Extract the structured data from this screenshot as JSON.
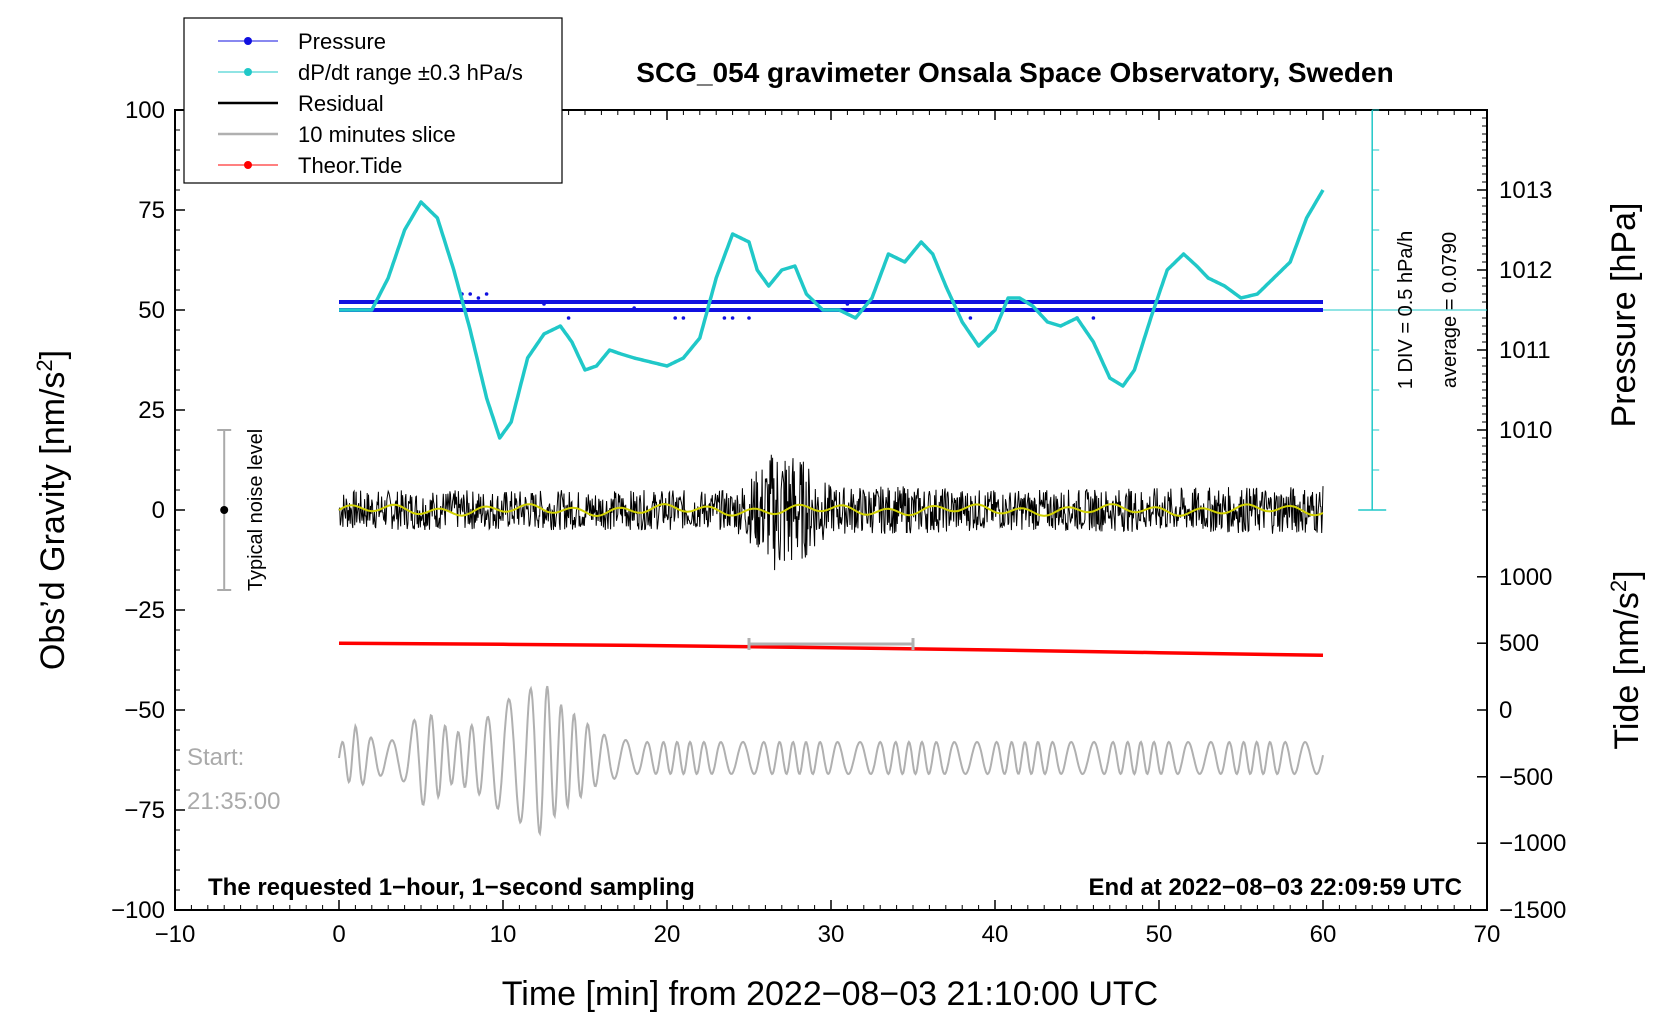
{
  "chart_data": {
    "type": "line",
    "title": "SCG_054 gravimeter Onsala Space Observatory, Sweden",
    "xlabel": "Time [min] from 2022−08−03 21:10:00 UTC",
    "ylabel_left": "Obs’d Gravity [nm/s²]",
    "ylabel_left_main": "Obs’d Gravity [nm/s",
    "ylabel_left_sup": "2",
    "ylabel_left_end": "]",
    "ylabel_right_top": "Pressure [hPa]",
    "ylabel_right_bottom_main": "Tide [nm/s",
    "ylabel_right_bottom_sup": "2",
    "ylabel_right_bottom_end": "]",
    "xlim": [
      -10,
      70
    ],
    "ylim": [
      -100,
      100
    ],
    "x_ticks": [
      -10,
      0,
      10,
      20,
      30,
      40,
      50,
      60,
      70
    ],
    "x_tick_labels": [
      "−10",
      "0",
      "10",
      "20",
      "30",
      "40",
      "50",
      "60",
      "70"
    ],
    "y_ticks": [
      100,
      75,
      50,
      25,
      0,
      -25,
      -50,
      -75,
      -100
    ],
    "y_tick_labels": [
      "100",
      "75",
      "50",
      "25",
      "0",
      "−25",
      "−50",
      "−75",
      "−100"
    ],
    "pressure_axis": {
      "ticks": [
        1013,
        1012,
        1011,
        1010
      ],
      "tick_labels": [
        "1013",
        "1012",
        "1011",
        "1010"
      ],
      "y_at_ticks": [
        80,
        60,
        40,
        20
      ]
    },
    "tide_axis": {
      "ticks": [
        1000,
        500,
        0,
        -500,
        -1000,
        -1500
      ],
      "tick_labels": [
        "1000",
        "500",
        "0",
        "−500",
        "−1000",
        "−1500"
      ],
      "y_at_ticks": [
        -16.7,
        -33.3,
        -50,
        -66.7,
        -83.3,
        -100
      ]
    },
    "legend": [
      {
        "label": "Pressure",
        "color": "#1010e0"
      },
      {
        "label": "dP/dt range ±0.3 hPa/s",
        "color": "#20c8c8"
      },
      {
        "label": "Residual",
        "color": "#000000"
      },
      {
        "label": "10 minutes slice",
        "color": "#b0b0b0"
      },
      {
        "label": "Theor.Tide",
        "color": "#ff0000"
      }
    ],
    "series": {
      "dpdt_curve": {
        "name": "dP/dt range ±0.3 hPa/s",
        "color": "#20c8c8",
        "x": [
          0,
          2,
          3,
          4,
          5,
          6,
          7,
          8,
          9,
          9.8,
          10.5,
          11.5,
          12.5,
          13.5,
          14.2,
          15,
          15.7,
          16.5,
          17.2,
          18,
          19,
          20,
          21,
          22,
          23,
          24,
          25,
          25.5,
          26.2,
          27,
          27.8,
          28.5,
          29.5,
          30.5,
          31.5,
          32.5,
          33.5,
          34.5,
          35.5,
          36.2,
          37,
          38,
          39,
          40,
          40.8,
          41.5,
          42.3,
          43.2,
          44,
          45,
          46,
          47,
          47.8,
          48.5,
          49.5,
          50.5,
          51.5,
          52.3,
          53,
          54,
          55,
          56,
          57,
          58,
          59,
          60
        ],
        "y": [
          50,
          50,
          58,
          70,
          77,
          73,
          60,
          45,
          28,
          18,
          22,
          38,
          44,
          46,
          42,
          35,
          36,
          40,
          39,
          38,
          37,
          36,
          38,
          43,
          58,
          69,
          67,
          60,
          56,
          60,
          61,
          54,
          50,
          50,
          48,
          53,
          64,
          62,
          67,
          64,
          56,
          47,
          41,
          45,
          53,
          53,
          51,
          47,
          46,
          48,
          42,
          33,
          31,
          35,
          48,
          60,
          64,
          61,
          58,
          56,
          53,
          54,
          58,
          62,
          73,
          80
        ]
      },
      "pressure": {
        "name": "Pressure",
        "color": "#1010e0",
        "x_range": [
          0,
          60
        ],
        "levels": [
          52,
          50
        ],
        "scatter_x": [
          7.5,
          8,
          8.5,
          9,
          10,
          11.2,
          12.5,
          13,
          13.5,
          14,
          15,
          18,
          20.5,
          21,
          22,
          23.5,
          24,
          25,
          25.5,
          30.5,
          31,
          31.5,
          36,
          38.5,
          40,
          42.5,
          43.5,
          44.5,
          45,
          46,
          47.5,
          48,
          50,
          53.5,
          55,
          58
        ],
        "scatter_y": [
          54,
          54,
          53,
          54,
          52,
          52,
          51.5,
          52,
          50,
          48,
          52,
          50.5,
          48,
          48,
          50,
          48,
          48,
          48,
          50,
          52,
          51.5,
          52,
          50,
          48,
          50,
          52,
          50,
          50,
          48,
          48,
          52,
          50,
          52,
          52,
          50,
          50
        ]
      },
      "residual": {
        "name": "Residual",
        "color": "#000000",
        "smooth_color": "#d0d000",
        "x_range": [
          0,
          60
        ],
        "center": 0,
        "amplitude_profile_x": [
          0,
          24,
          25,
          26,
          27,
          28,
          29,
          30,
          35,
          40,
          58,
          60
        ],
        "amplitude_profile_y": [
          5,
          5,
          8,
          13,
          18,
          14,
          10,
          6,
          6,
          5,
          6,
          6
        ]
      },
      "tide": {
        "name": "Theor.Tide",
        "color": "#ff0000",
        "x": [
          0,
          10,
          20,
          30,
          40,
          50,
          60
        ],
        "y_tide_units": [
          500,
          493,
          482,
          467,
          450,
          430,
          410
        ]
      },
      "slice": {
        "name": "10 minutes slice",
        "color": "#b0b0b0",
        "x": [
          0,
          1,
          2,
          3,
          4,
          5,
          6,
          6.5,
          7,
          8,
          9,
          10,
          11,
          12,
          12.5,
          13,
          14,
          15,
          16,
          17,
          18,
          19,
          20,
          25,
          30,
          35,
          40,
          45,
          50,
          55,
          60
        ],
        "center": -62,
        "amplitude": [
          3,
          8,
          5,
          4,
          6,
          12,
          10,
          8,
          6,
          8,
          10,
          14,
          16,
          18,
          20,
          15,
          12,
          9,
          6,
          5,
          4,
          4,
          4,
          4,
          4,
          4,
          4,
          4,
          4,
          4,
          4
        ],
        "bracket_x": [
          25,
          35
        ],
        "bracket_y": -33.5
      }
    },
    "annotations": {
      "noise_label": "Typical noise level",
      "noise_range": [
        -20,
        20
      ],
      "start_label": "Start:",
      "start_time": "21:35:00",
      "bottom_left": "The requested 1−hour, 1−second sampling",
      "bottom_right": "End at 2022−08−03 22:09:59 UTC",
      "rot_line1": "1 DIV = 0.5 hPa/h",
      "rot_line2": "average = 0.0790"
    }
  }
}
